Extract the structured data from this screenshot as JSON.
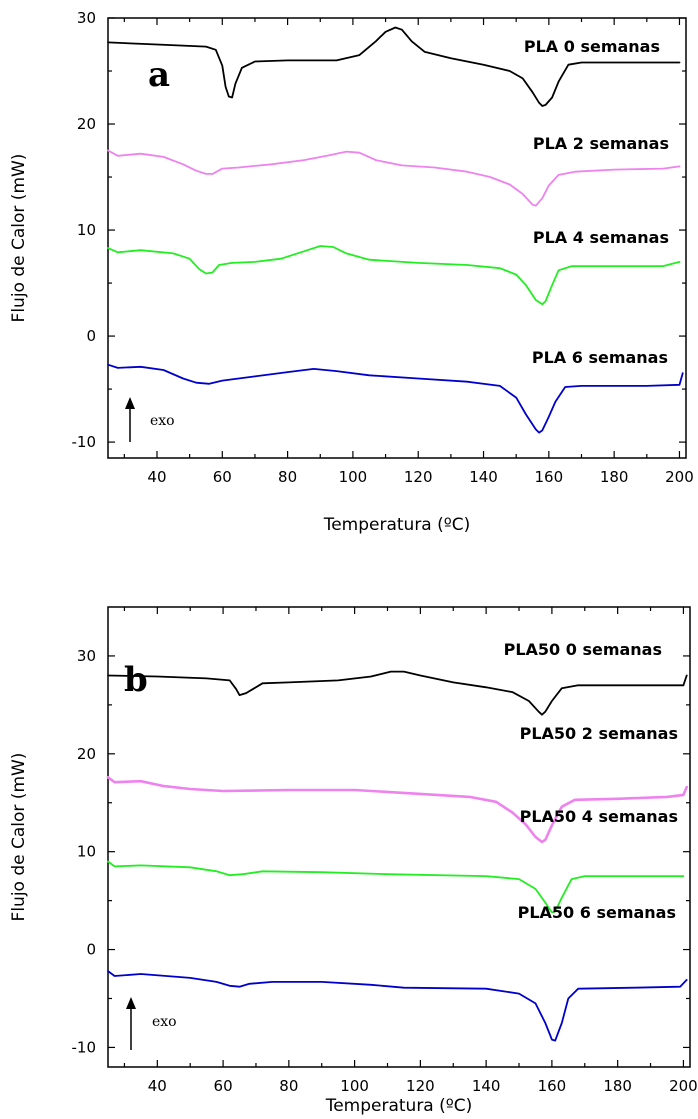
{
  "chart_data": [
    {
      "type": "line",
      "panel_label": "a",
      "xlabel": "Temperatura (ºC)",
      "ylabel": "Flujo de Calor (mW)",
      "xlim": [
        25,
        202
      ],
      "ylim": [
        -11.5,
        30
      ],
      "x_ticks": [
        40,
        60,
        80,
        100,
        120,
        140,
        160,
        180,
        200
      ],
      "y_ticks": [
        -10,
        0,
        10,
        20,
        30
      ],
      "annotation": "exo",
      "grid": false,
      "series": [
        {
          "name": "PLA 0 semanas",
          "color": "#000000",
          "points": [
            [
              25,
              27.7
            ],
            [
              40,
              27.5
            ],
            [
              55,
              27.3
            ],
            [
              58,
              27
            ],
            [
              60,
              25.5
            ],
            [
              61,
              23.5
            ],
            [
              62,
              22.6
            ],
            [
              63,
              22.5
            ],
            [
              64,
              23.8
            ],
            [
              66,
              25.3
            ],
            [
              70,
              25.9
            ],
            [
              80,
              26
            ],
            [
              95,
              26
            ],
            [
              102,
              26.5
            ],
            [
              107,
              27.8
            ],
            [
              110,
              28.7
            ],
            [
              113,
              29.1
            ],
            [
              115,
              28.9
            ],
            [
              118,
              27.8
            ],
            [
              122,
              26.8
            ],
            [
              130,
              26.2
            ],
            [
              140,
              25.6
            ],
            [
              148,
              25
            ],
            [
              152,
              24.3
            ],
            [
              155,
              23
            ],
            [
              157,
              22
            ],
            [
              158,
              21.7
            ],
            [
              159,
              21.8
            ],
            [
              161,
              22.5
            ],
            [
              163,
              24
            ],
            [
              166,
              25.6
            ],
            [
              170,
              25.8
            ],
            [
              180,
              25.8
            ],
            [
              190,
              25.8
            ],
            [
              200,
              25.8
            ]
          ]
        },
        {
          "name": "PLA 2 semanas",
          "color": "#ee82ee",
          "points": [
            [
              25,
              17.5
            ],
            [
              28,
              17
            ],
            [
              35,
              17.2
            ],
            [
              42,
              16.9
            ],
            [
              48,
              16.2
            ],
            [
              52,
              15.6
            ],
            [
              55,
              15.3
            ],
            [
              57,
              15.3
            ],
            [
              60,
              15.8
            ],
            [
              65,
              15.9
            ],
            [
              75,
              16.2
            ],
            [
              85,
              16.6
            ],
            [
              92,
              17
            ],
            [
              98,
              17.4
            ],
            [
              102,
              17.3
            ],
            [
              107,
              16.6
            ],
            [
              115,
              16.1
            ],
            [
              125,
              15.9
            ],
            [
              135,
              15.5
            ],
            [
              142,
              15
            ],
            [
              148,
              14.3
            ],
            [
              152,
              13.4
            ],
            [
              155,
              12.4
            ],
            [
              156,
              12.3
            ],
            [
              158,
              13
            ],
            [
              160,
              14.2
            ],
            [
              163,
              15.2
            ],
            [
              168,
              15.5
            ],
            [
              180,
              15.7
            ],
            [
              195,
              15.8
            ],
            [
              200,
              16
            ]
          ]
        },
        {
          "name": "PLA 4 semanas",
          "color": "#22ee22",
          "points": [
            [
              25,
              8.3
            ],
            [
              28,
              7.9
            ],
            [
              35,
              8.1
            ],
            [
              45,
              7.8
            ],
            [
              50,
              7.3
            ],
            [
              53,
              6.3
            ],
            [
              55,
              5.9
            ],
            [
              57,
              6
            ],
            [
              59,
              6.7
            ],
            [
              63,
              6.9
            ],
            [
              70,
              7
            ],
            [
              78,
              7.3
            ],
            [
              85,
              8
            ],
            [
              90,
              8.5
            ],
            [
              94,
              8.4
            ],
            [
              98,
              7.8
            ],
            [
              105,
              7.2
            ],
            [
              120,
              6.9
            ],
            [
              135,
              6.7
            ],
            [
              145,
              6.4
            ],
            [
              150,
              5.8
            ],
            [
              153,
              4.8
            ],
            [
              156,
              3.4
            ],
            [
              158,
              3
            ],
            [
              159,
              3.3
            ],
            [
              161,
              4.8
            ],
            [
              163,
              6.2
            ],
            [
              167,
              6.6
            ],
            [
              180,
              6.6
            ],
            [
              195,
              6.6
            ],
            [
              200,
              7
            ]
          ]
        },
        {
          "name": "PLA 6 semanas",
          "color": "#0000cc",
          "points": [
            [
              25,
              -2.7
            ],
            [
              28,
              -3
            ],
            [
              35,
              -2.9
            ],
            [
              42,
              -3.2
            ],
            [
              48,
              -4
            ],
            [
              52,
              -4.4
            ],
            [
              56,
              -4.5
            ],
            [
              60,
              -4.2
            ],
            [
              70,
              -3.8
            ],
            [
              80,
              -3.4
            ],
            [
              88,
              -3.1
            ],
            [
              95,
              -3.3
            ],
            [
              105,
              -3.7
            ],
            [
              120,
              -4
            ],
            [
              135,
              -4.3
            ],
            [
              145,
              -4.7
            ],
            [
              150,
              -5.8
            ],
            [
              153,
              -7.4
            ],
            [
              156,
              -8.8
            ],
            [
              157,
              -9.1
            ],
            [
              158,
              -8.9
            ],
            [
              160,
              -7.6
            ],
            [
              162,
              -6.2
            ],
            [
              165,
              -4.8
            ],
            [
              170,
              -4.7
            ],
            [
              190,
              -4.7
            ],
            [
              200,
              -4.6
            ],
            [
              201,
              -3.5
            ]
          ]
        }
      ]
    },
    {
      "type": "line",
      "panel_label": "b",
      "xlabel": "Temperatura (ºC)",
      "ylabel": "Flujo de Calor (mW)",
      "xlim": [
        25,
        202
      ],
      "ylim": [
        -12,
        35
      ],
      "x_ticks": [
        40,
        60,
        80,
        100,
        120,
        140,
        160,
        180,
        200
      ],
      "y_ticks": [
        -10,
        0,
        10,
        20,
        30
      ],
      "annotation": "exo",
      "grid": false,
      "series": [
        {
          "name": "PLA50 0 semanas",
          "color": "#000000",
          "points": [
            [
              25,
              28
            ],
            [
              40,
              27.9
            ],
            [
              55,
              27.7
            ],
            [
              62,
              27.5
            ],
            [
              64,
              26.6
            ],
            [
              65,
              26
            ],
            [
              67,
              26.2
            ],
            [
              69,
              26.6
            ],
            [
              72,
              27.2
            ],
            [
              80,
              27.3
            ],
            [
              95,
              27.5
            ],
            [
              105,
              27.9
            ],
            [
              111,
              28.4
            ],
            [
              115,
              28.4
            ],
            [
              120,
              28
            ],
            [
              130,
              27.3
            ],
            [
              140,
              26.8
            ],
            [
              148,
              26.3
            ],
            [
              153,
              25.4
            ],
            [
              156,
              24.3
            ],
            [
              157,
              24
            ],
            [
              158,
              24.3
            ],
            [
              160,
              25.4
            ],
            [
              163,
              26.7
            ],
            [
              168,
              27
            ],
            [
              185,
              27
            ],
            [
              200,
              27
            ],
            [
              201,
              28
            ]
          ]
        },
        {
          "name": "PLA50 2 semanas",
          "color": "#ee82ee",
          "points": [
            [
              25,
              17.6
            ],
            [
              27,
              17.1
            ],
            [
              35,
              17.2
            ],
            [
              42,
              16.7
            ],
            [
              50,
              16.4
            ],
            [
              60,
              16.2
            ],
            [
              80,
              16.3
            ],
            [
              100,
              16.3
            ],
            [
              120,
              15.9
            ],
            [
              135,
              15.6
            ],
            [
              143,
              15.1
            ],
            [
              148,
              14
            ],
            [
              152,
              12.8
            ],
            [
              155,
              11.5
            ],
            [
              157,
              11
            ],
            [
              158,
              11.2
            ],
            [
              160,
              12.7
            ],
            [
              163,
              14.6
            ],
            [
              167,
              15.3
            ],
            [
              180,
              15.4
            ],
            [
              195,
              15.6
            ],
            [
              200,
              15.8
            ],
            [
              201,
              16.6
            ]
          ]
        },
        {
          "name": "PLA50 4 semanas",
          "color": "#22ee22",
          "points": [
            [
              25,
              9
            ],
            [
              27,
              8.5
            ],
            [
              35,
              8.6
            ],
            [
              50,
              8.4
            ],
            [
              58,
              8
            ],
            [
              62,
              7.6
            ],
            [
              66,
              7.7
            ],
            [
              72,
              8
            ],
            [
              90,
              7.9
            ],
            [
              110,
              7.7
            ],
            [
              140,
              7.5
            ],
            [
              150,
              7.2
            ],
            [
              155,
              6.2
            ],
            [
              158,
              4.8
            ],
            [
              160,
              3.8
            ],
            [
              161,
              3.9
            ],
            [
              163,
              5.3
            ],
            [
              166,
              7.2
            ],
            [
              170,
              7.5
            ],
            [
              185,
              7.5
            ],
            [
              200,
              7.5
            ]
          ]
        },
        {
          "name": "PLA50 6 semanas",
          "color": "#0000cc",
          "points": [
            [
              25,
              -2.2
            ],
            [
              27,
              -2.7
            ],
            [
              35,
              -2.5
            ],
            [
              50,
              -2.9
            ],
            [
              58,
              -3.3
            ],
            [
              62,
              -3.7
            ],
            [
              65,
              -3.8
            ],
            [
              68,
              -3.5
            ],
            [
              75,
              -3.3
            ],
            [
              90,
              -3.3
            ],
            [
              105,
              -3.6
            ],
            [
              115,
              -3.9
            ],
            [
              140,
              -4
            ],
            [
              150,
              -4.5
            ],
            [
              155,
              -5.5
            ],
            [
              158,
              -7.5
            ],
            [
              160,
              -9.2
            ],
            [
              161,
              -9.3
            ],
            [
              163,
              -7.5
            ],
            [
              165,
              -5
            ],
            [
              168,
              -4
            ],
            [
              185,
              -3.9
            ],
            [
              199,
              -3.8
            ],
            [
              201,
              -3.1
            ]
          ]
        }
      ]
    }
  ]
}
